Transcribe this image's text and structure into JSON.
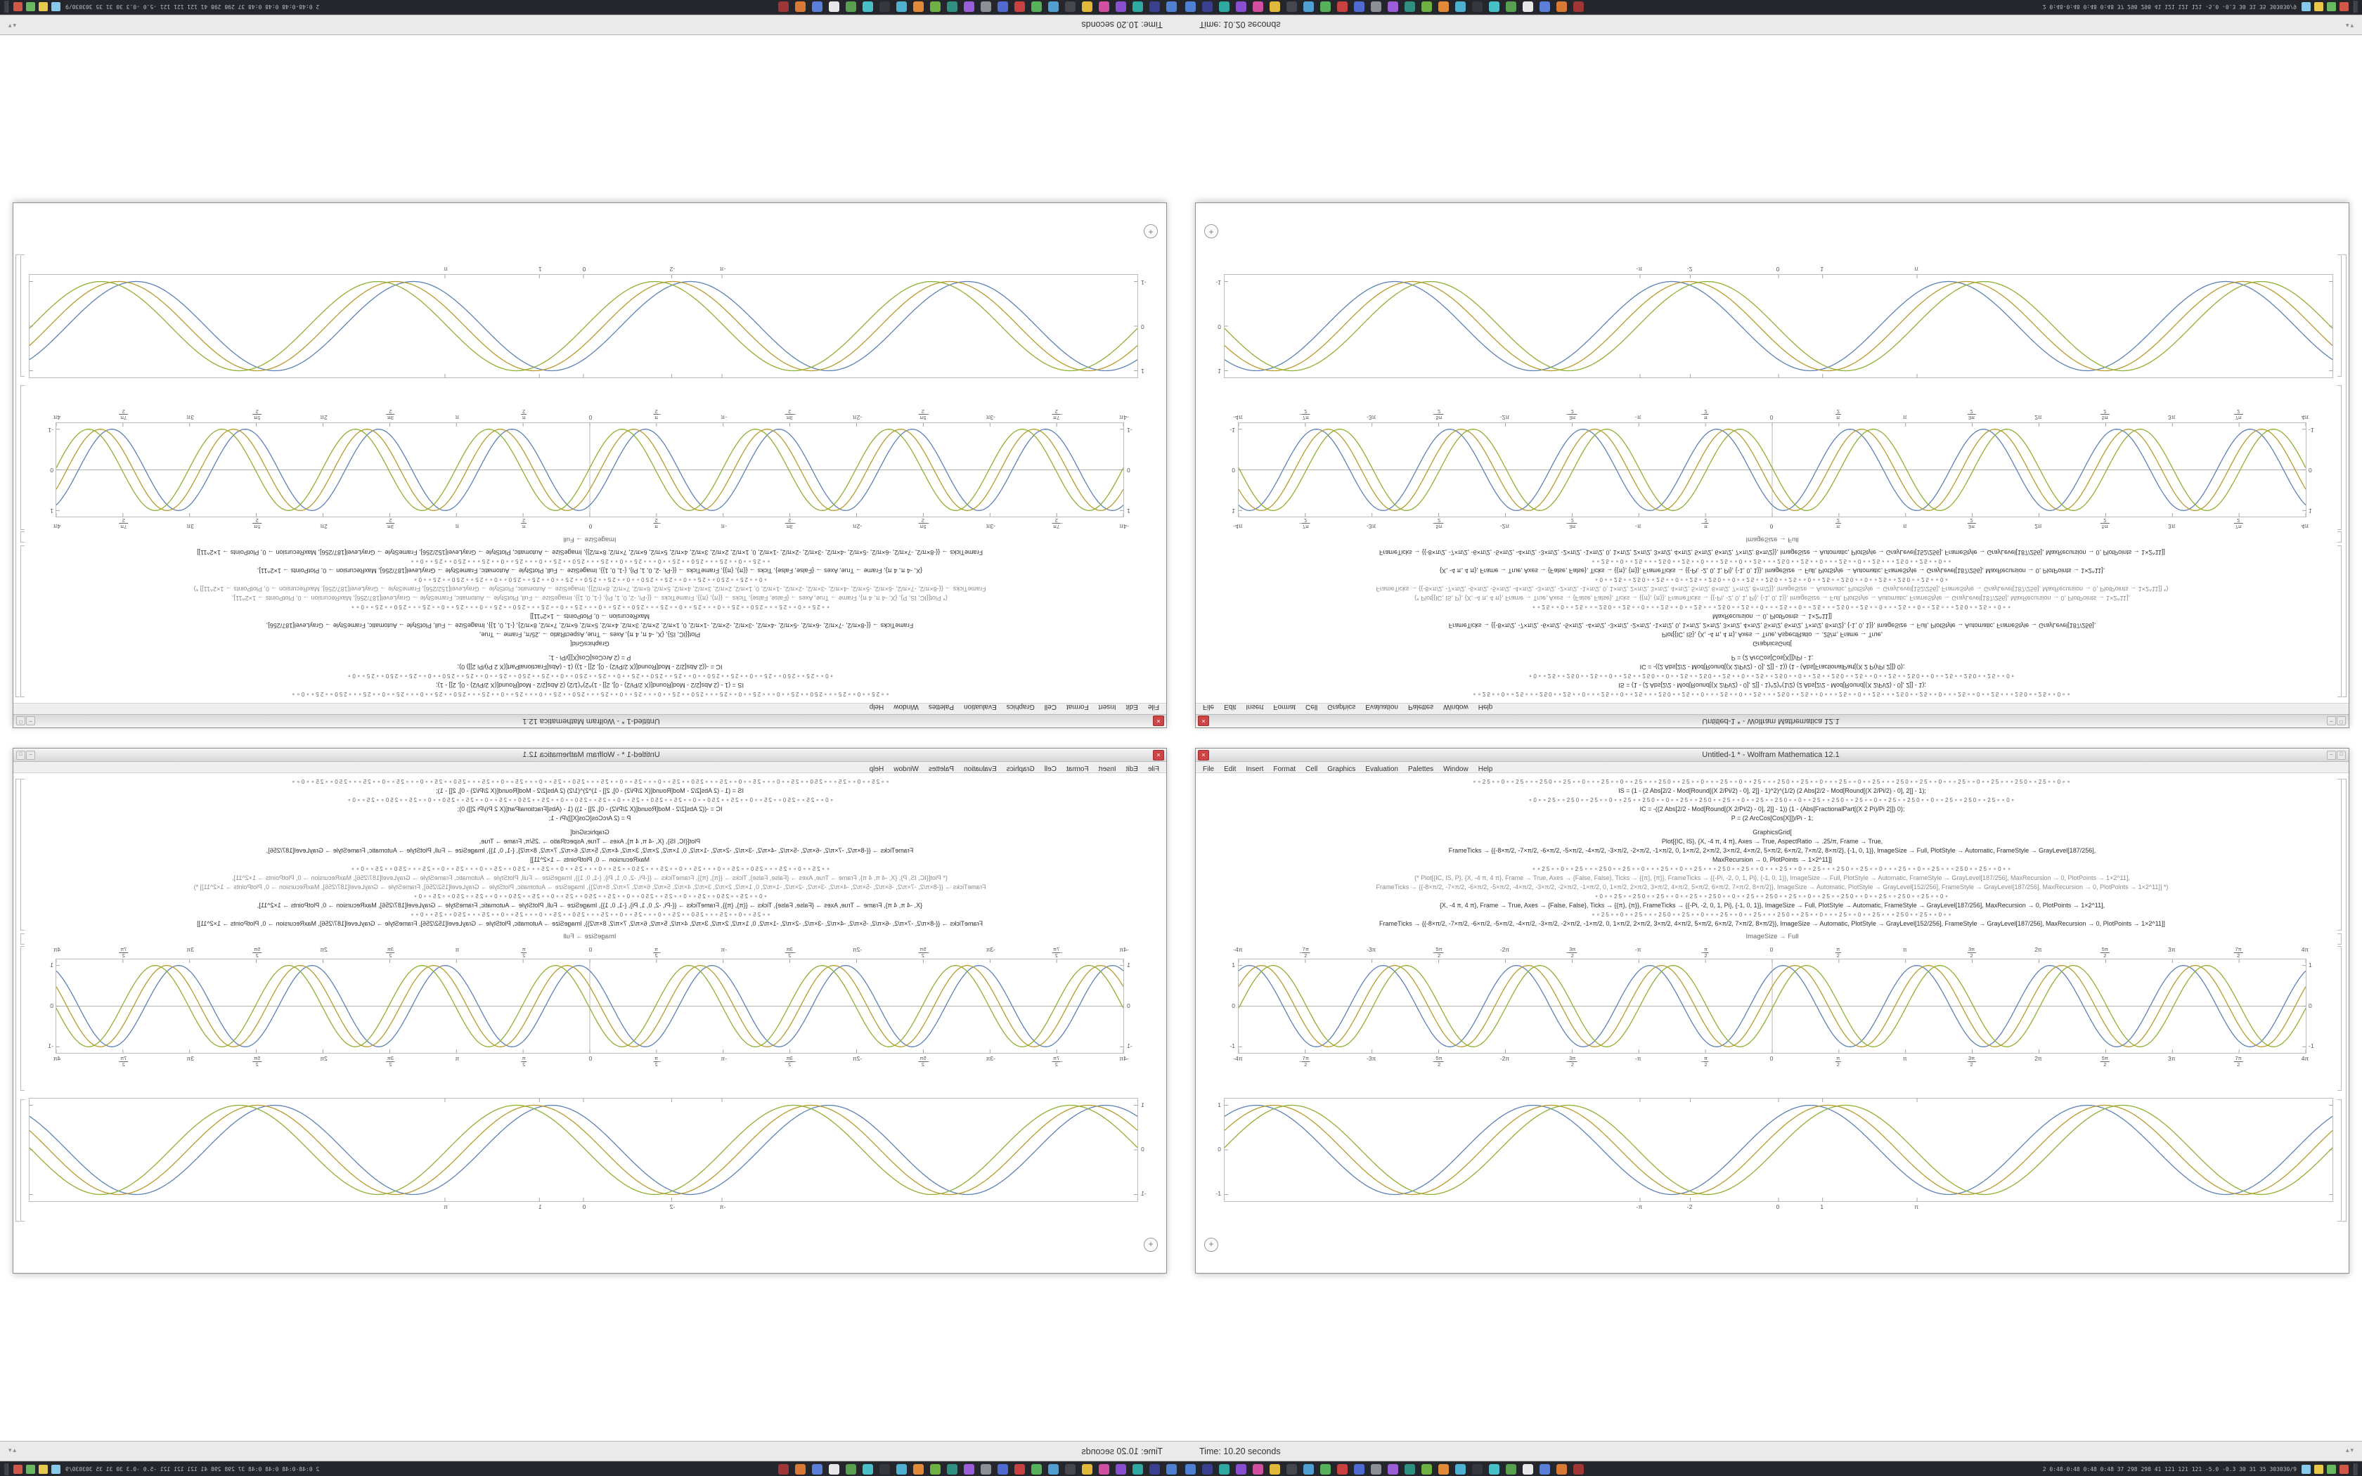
{
  "window": {
    "title": "Untitled-1 * - Wolfram Mathematica 12.1",
    "menu": [
      "File",
      "Edit",
      "Insert",
      "Format",
      "Cell",
      "Graphics",
      "Evaluation",
      "Palettes",
      "Window",
      "Help"
    ],
    "controls": {
      "close": "×",
      "minimize": "–",
      "maximize": "□"
    }
  },
  "notebook": {
    "output_label": "ImageSize → Full",
    "insert_button_glyph": "+",
    "code_lines": [
      {
        "c": "sym",
        "t": "∘∘25∘∘0∘∘25∘∘∘250∘∘25∘∘0∘∘∘25∘∘0∘∘25∘∘∘250∘∘25∘∘0∘∘∘25∘∘0∘∘25∘∘∘250∘∘25∘∘0∘∘∘25∘∘0∘∘25∘∘∘250∘∘25∘∘0∘∘∘25∘∘0∘∘25∘∘∘250∘∘25∘∘0∘∘"
      },
      {
        "c": "code",
        "t": "IS = (1 - (2 Abs[2/2 - Mod[Round[(X 2/Pi/2) - 0], 2]] - 1)^2)^(1/2) (2 Abs[2/2 - Mod[Round[(X 2/Pi/2) - 0], 2]] - 1);"
      },
      {
        "c": "sym",
        "t": "∘0∘∘25∘∘250∘∘25∘∘0∘∘25∘∘250∘∘0∘∘25∘∘250∘∘25∘∘0∘∘25∘∘250∘∘0∘∘25∘∘250∘∘25∘∘0∘∘25∘∘250∘∘0∘∘25∘∘250∘∘25∘∘0∘"
      },
      {
        "c": "code",
        "t": "IC = -((2 Abs[2/2 - Mod[Round[(X 2/Pi/2) - 0], 2]] - 1)) (1 - (Abs[FractionalPart[(X 2 Pi)/Pi 2]]) 0);"
      },
      {
        "c": "code",
        "t": "P = (2 ArcCos[Cos[X]])/Pi - 1;"
      },
      {
        "c": "gap",
        "t": ""
      },
      {
        "c": "code",
        "t": "GraphicsGrid["
      },
      {
        "c": "code",
        "t": "Plot[{IC, IS}, {X, -4 π, 4 π}, Axes → True, AspectRatio → .25/π, Frame → True,"
      },
      {
        "c": "code",
        "t": "FrameTicks → {{-8×π/2, -7×π/2, -6×π/2, -5×π/2, -4×π/2, -3×π/2, -2×π/2, -1×π/2, 0, 1×π/2, 2×π/2, 3×π/2, 4×π/2, 5×π/2, 6×π/2, 7×π/2, 8×π/2}, {-1, 0, 1}}, ImageSize → Full, PlotStyle → Automatic, FrameStyle → GrayLevel[187/256],"
      },
      {
        "c": "code",
        "t": "MaxRecursion → 0, PlotPoints → 1×2^11]]"
      },
      {
        "c": "sym",
        "t": "∘∘25∘∘0∘∘25∘∘∘250∘∘25∘∘0∘∘∘25∘∘0∘∘25∘∘∘250∘∘25∘∘0∘∘∘25∘∘0∘∘25∘∘∘250∘∘25∘∘0∘∘∘25∘∘0∘∘25∘∘∘250∘∘25∘∘0∘∘"
      },
      {
        "c": "comment",
        "t": "(* Plot[{IC, IS, P}, {X, -4 π, 4 π}, Frame → True, Axes → {False, False}, Ticks → {{π}, {π}}, FrameTicks → {{-Pi, -2, 0, 1, Pi}, {-1, 0, 1}}, ImageSize → Full, PlotStyle → Automatic, FrameStyle → GrayLevel[187/256], MaxRecursion → 0, PlotPoints → 1×2^11],"
      },
      {
        "c": "comment",
        "t": "FrameTicks → {{-8×π/2, -7×π/2, -6×π/2, -5×π/2, -4×π/2, -3×π/2, -2×π/2, -1×π/2, 0, 1×π/2, 2×π/2, 3×π/2, 4×π/2, 5×π/2, 6×π/2, 7×π/2, 8×π/2}}, ImageSize → Automatic, PlotStyle → GrayLevel[152/256], FrameStyle → GrayLevel[187/256], MaxRecursion → 0, PlotPoints → 1×2^11]] *)"
      },
      {
        "c": "sym",
        "t": "∘0∘∘25∘∘250∘∘25∘∘0∘∘25∘∘250∘∘0∘∘25∘∘250∘∘25∘∘0∘∘25∘∘250∘∘0∘∘25∘∘250∘∘25∘∘0∘"
      },
      {
        "c": "code",
        "t": "{X, -4 π, 4 π}, Frame → True, Axes → {False, False}, Ticks → {{π}, {π}}, FrameTicks → {{-Pi, -2, 0, 1, Pi}, {-1, 0, 1}}, ImageSize → Full, PlotStyle → Automatic, FrameStyle → GrayLevel[187/256], MaxRecursion → 0, PlotPoints → 1×2^11],"
      },
      {
        "c": "sym",
        "t": "∘∘25∘∘0∘∘25∘∘∘250∘∘25∘∘0∘∘∘25∘∘0∘∘25∘∘∘250∘∘25∘∘0∘∘∘25∘∘0∘∘25∘∘∘250∘∘25∘∘0∘∘"
      },
      {
        "c": "code",
        "t": "FrameTicks → {{-8×π/2, -7×π/2, -6×π/2, -5×π/2, -4×π/2, -3×π/2, -2×π/2, -1×π/2, 0, 1×π/2, 2×π/2, 3×π/2, 4×π/2, 5×π/2, 6×π/2, 7×π/2, 8×π/2}}, ImageSize → Automatic, PlotStyle → GrayLevel[152/256], FrameStyle → GrayLevel[187/256], MaxRecursion → 0, PlotPoints → 1×2^11]]"
      }
    ]
  },
  "chart_data": [
    {
      "type": "line",
      "title": "ImageSize → Full",
      "xlabel": "",
      "ylabel": "",
      "x_range": [
        -12.566,
        12.566
      ],
      "ylim": [
        -1.15,
        1.15
      ],
      "frame": true,
      "axes": true,
      "x_tick_values": [
        -12.566,
        -10.996,
        -9.425,
        -7.854,
        -6.283,
        -4.712,
        -3.1416,
        -1.5708,
        0,
        1.5708,
        3.1416,
        4.712,
        6.283,
        7.854,
        9.425,
        10.996,
        12.566
      ],
      "x_tick_labels": [
        "-4π",
        "-7π/2",
        "-3π",
        "-5π/2",
        "-2π",
        "-3π/2",
        "-π",
        "-π/2",
        "0",
        "π/2",
        "π",
        "3π/2",
        "2π",
        "5π/2",
        "3π",
        "7π/2",
        "4π"
      ],
      "y_tick_values": [
        -1,
        0,
        1
      ],
      "y_tick_labels": [
        "-1",
        "0",
        "1"
      ],
      "series": [
        {
          "name": "IC",
          "color": "#5E81B5",
          "amp": 1,
          "freq": 2,
          "phase": 1.05
        },
        {
          "name": "IS",
          "color": "#B89B2E",
          "amp": 1,
          "freq": 2,
          "phase": 0.5
        },
        {
          "name": "P",
          "color": "#8FB032",
          "amp": 1,
          "freq": 2,
          "phase": -0.05
        }
      ]
    },
    {
      "type": "line",
      "title": "",
      "xlabel": "",
      "ylabel": "",
      "x_range": [
        -12.566,
        12.566
      ],
      "ylim": [
        -1.15,
        1.15
      ],
      "frame": true,
      "axes": false,
      "x_tick_values": [
        -3.1416,
        -2,
        0,
        1,
        3.1416
      ],
      "x_tick_labels": [
        "-π",
        "-2",
        "0",
        "1",
        "π"
      ],
      "y_tick_values": [
        -1,
        0,
        1
      ],
      "y_tick_labels": [
        "-1",
        "0",
        "1"
      ],
      "series": [
        {
          "name": "IC",
          "color": "#5E81B5",
          "amp": 1,
          "freq": 1,
          "phase": 0.85
        },
        {
          "name": "IS",
          "color": "#B89B2E",
          "amp": 1,
          "freq": 1,
          "phase": 0.45
        },
        {
          "name": "P",
          "color": "#8FB032",
          "amp": 1,
          "freq": 1,
          "phase": 0.05
        }
      ]
    }
  ],
  "statusbar": {
    "time_label": "Time: 10.20 seconds",
    "scroll_glyphs": "▴▾"
  },
  "taskbar": {
    "app_icon_colors": [
      "#4f7fd0",
      "#3a3f8f",
      "#2fa8a0",
      "#8a4fd0",
      "#d04fa0",
      "#e0b83a",
      "#45464e",
      "#4f9fd0",
      "#57b05a",
      "#c94040",
      "#4f6ad0",
      "#8b8f98",
      "#9a5fd8",
      "#2f8f80",
      "#6fb043",
      "#e08a3a",
      "#4fb0d0",
      "#35373d",
      "#48c0c8",
      "#58a050",
      "#e8e8e8",
      "#5a7fd8",
      "#d87a35",
      "#a03535"
    ],
    "tray_text": "2 0:48-0:48 0:48 0:48 37 298 298 41 121 121 121 -5.0 -0.3 30 31 35 303030/9",
    "tray_icon_colors": [
      "#88c8e8",
      "#e8c84a",
      "#68b860",
      "#d05848"
    ]
  }
}
